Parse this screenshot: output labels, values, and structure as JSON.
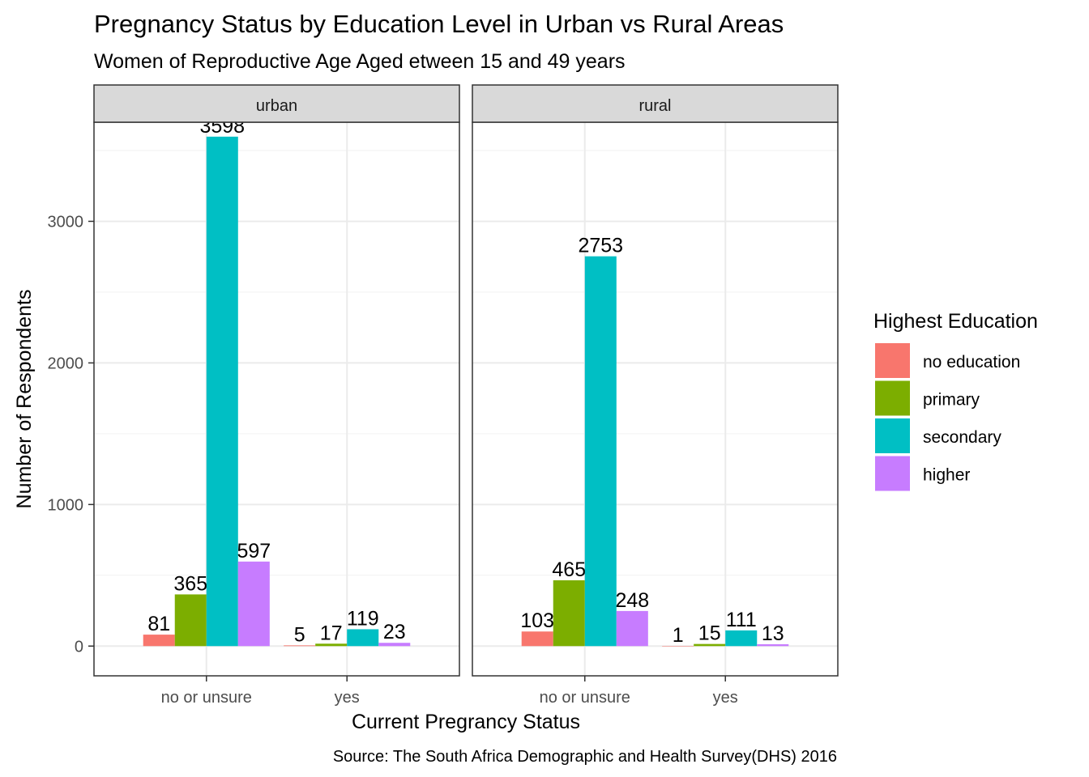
{
  "chart_data": {
    "type": "bar",
    "title": "Pregnancy Status by Education Level in Urban vs Rural Areas",
    "subtitle": "Women of Reproductive Age Aged  etween 15 and 49 years",
    "xlabel": "Current Pregrancy Status",
    "ylabel": "Number of Respondents",
    "caption": "Source: The South Africa Demographic and Health Survey(DHS) 2016",
    "ylim": [
      -210,
      3700
    ],
    "yticks": [
      0,
      1000,
      2000,
      3000
    ],
    "ytick_labels": [
      "0",
      "1000",
      "2000",
      "3000"
    ],
    "grid": true,
    "categories": [
      "no or unsure",
      "yes"
    ],
    "legend": {
      "title": "Highest Education",
      "placement": "right",
      "entries": [
        {
          "name": "no education",
          "color": "#F8766D"
        },
        {
          "name": "primary",
          "color": "#7CAE00"
        },
        {
          "name": "secondary",
          "color": "#00BFC4"
        },
        {
          "name": "higher",
          "color": "#C77CFF"
        }
      ]
    },
    "facets": [
      {
        "label": "urban",
        "series": [
          {
            "name": "no education",
            "values": [
              81,
              5
            ]
          },
          {
            "name": "primary",
            "values": [
              365,
              17
            ]
          },
          {
            "name": "secondary",
            "values": [
              3598,
              119
            ]
          },
          {
            "name": "higher",
            "values": [
              597,
              23
            ]
          }
        ]
      },
      {
        "label": "rural",
        "series": [
          {
            "name": "no education",
            "values": [
              103,
              1
            ]
          },
          {
            "name": "primary",
            "values": [
              465,
              15
            ]
          },
          {
            "name": "secondary",
            "values": [
              2753,
              111
            ]
          },
          {
            "name": "higher",
            "values": [
              248,
              13
            ]
          }
        ]
      }
    ]
  }
}
